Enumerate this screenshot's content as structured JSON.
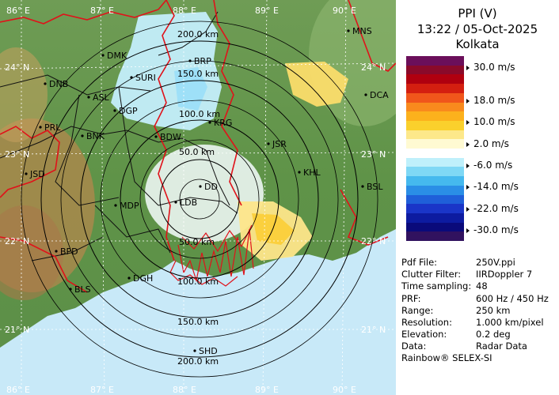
{
  "product": {
    "title": "PPI (V)",
    "datetime": "13:22 / 05-Oct-2025",
    "site": "Kolkata"
  },
  "colorscale": {
    "colors": [
      "#6b0f5a",
      "#8a0a2a",
      "#b0000f",
      "#d41f10",
      "#f0561b",
      "#f98a1d",
      "#fcb11c",
      "#fad02c",
      "#fde88a",
      "#fffad2",
      "#ffffff",
      "#bff0fb",
      "#7fd8f5",
      "#45b9ee",
      "#2a8ee6",
      "#1f5fd9",
      "#1a35c8",
      "#0d1ba0",
      "#0a0a7a",
      "#31125f"
    ],
    "ticks": [
      {
        "label": "30.0 m/s"
      },
      {
        "label": "18.0 m/s"
      },
      {
        "label": "10.0 m/s"
      },
      {
        "label": "2.0 m/s"
      },
      {
        "label": "-6.0 m/s"
      },
      {
        "label": "-14.0 m/s"
      },
      {
        "label": "-22.0 m/s"
      },
      {
        "label": "-30.0 m/s"
      }
    ]
  },
  "info": [
    {
      "key": "Pdf File:",
      "value": "250V.ppi"
    },
    {
      "key": "Clutter Filter:",
      "value": "IIRDoppler 7"
    },
    {
      "key": "Time sampling:",
      "value": "48"
    },
    {
      "key": "PRF:",
      "value": "600 Hz / 450 Hz"
    },
    {
      "key": "Range:",
      "value": "250 km"
    },
    {
      "key": "Resolution:",
      "value": "1.000 km/pixel"
    },
    {
      "key": "Elevation:",
      "value": "0.2 deg"
    },
    {
      "key": "Data:",
      "value": "Radar Data"
    }
  ],
  "credit": "Rainbow® SELEX-SI",
  "map": {
    "lon_labels": [
      "86° E",
      "87° E",
      "88° E",
      "89° E",
      "90° E"
    ],
    "lat_labels": [
      "24° N",
      "23° N",
      "22° N",
      "21° N"
    ],
    "range_rings": [
      "50.0 km",
      "100.0 km",
      "150.0 km",
      "200.0 km"
    ],
    "range_ring_km": [
      50,
      100,
      150,
      200
    ],
    "cities": [
      {
        "name": "MNS"
      },
      {
        "name": "DMK"
      },
      {
        "name": "BRP"
      },
      {
        "name": "DNB"
      },
      {
        "name": "SURI"
      },
      {
        "name": "ASL"
      },
      {
        "name": "DGP"
      },
      {
        "name": "DCA"
      },
      {
        "name": "KRG"
      },
      {
        "name": "PRL"
      },
      {
        "name": "BNK"
      },
      {
        "name": "BDW"
      },
      {
        "name": "JSR"
      },
      {
        "name": "KHL"
      },
      {
        "name": "JSD"
      },
      {
        "name": "DD"
      },
      {
        "name": "BSL"
      },
      {
        "name": "MDP"
      },
      {
        "name": "LDB"
      },
      {
        "name": "BPD"
      },
      {
        "name": "BLS"
      },
      {
        "name": "DGH"
      },
      {
        "name": "SHD"
      }
    ]
  }
}
